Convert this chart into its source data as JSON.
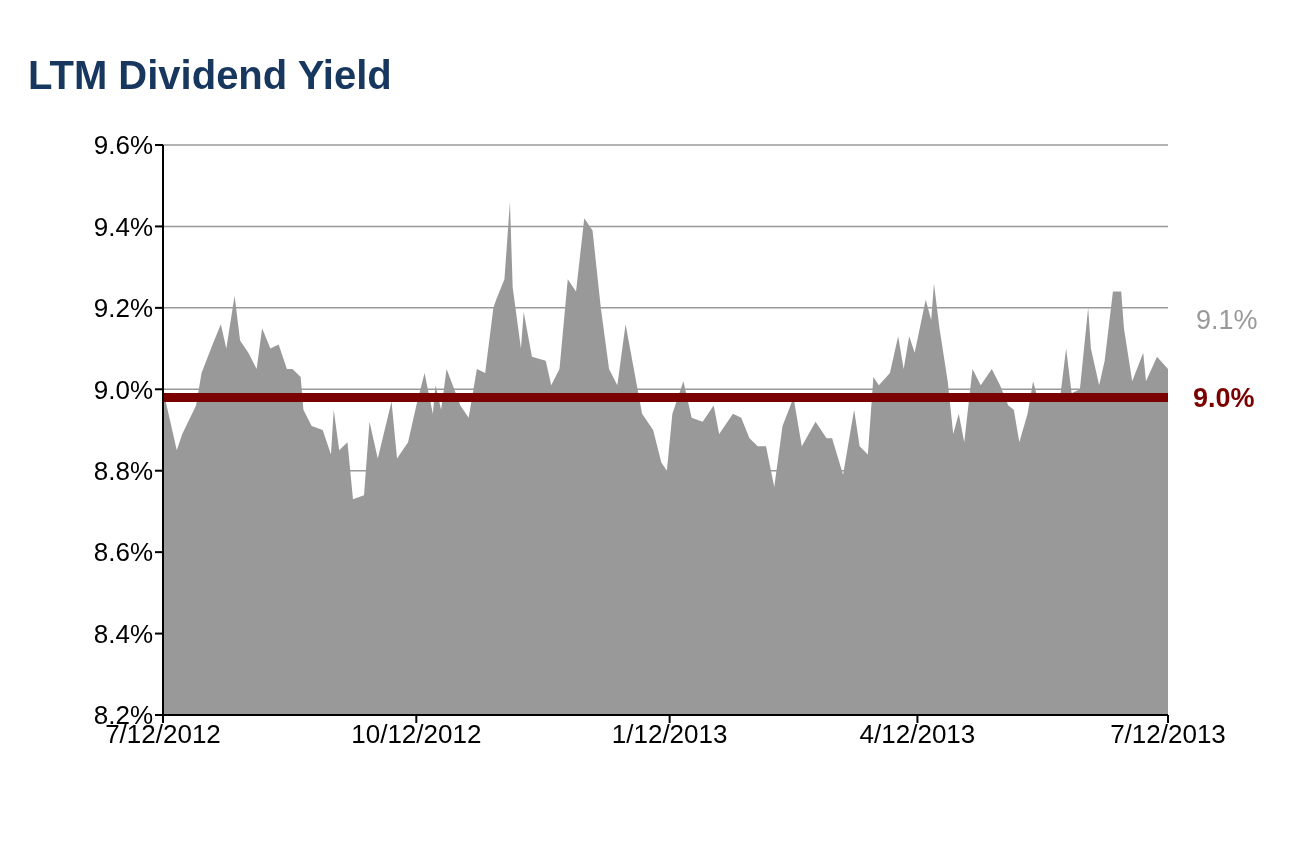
{
  "chart_data": {
    "type": "area",
    "title": "LTM Dividend Yield",
    "annotations": [
      "9.1%"
    ],
    "grid": "y",
    "xlim": [
      "2012-07-12",
      "2013-07-12"
    ],
    "xticks": [
      {
        "value": "2012-07-12",
        "label": "7/12/2012"
      },
      {
        "value": "2012-10-12",
        "label": "10/12/2012"
      },
      {
        "value": "2013-01-12",
        "label": "1/12/2013"
      },
      {
        "value": "2013-04-12",
        "label": "4/12/2013"
      },
      {
        "value": "2013-07-12",
        "label": "7/12/2013"
      }
    ],
    "ylim": [
      8.2,
      9.6
    ],
    "yticks": [
      {
        "value": 8.2,
        "label": "8.2%"
      },
      {
        "value": 8.4,
        "label": "8.4%"
      },
      {
        "value": 8.6,
        "label": "8.6%"
      },
      {
        "value": 8.8,
        "label": "8.8%"
      },
      {
        "value": 9.0,
        "label": "9.0%"
      },
      {
        "value": 9.2,
        "label": "9.2%"
      },
      {
        "value": 9.4,
        "label": "9.4%"
      },
      {
        "value": 9.6,
        "label": "9.6%"
      }
    ],
    "ref_lines": [
      {
        "axis": "y",
        "value": 8.98,
        "label": "9.0%",
        "color": "#7b0000"
      }
    ],
    "x": [
      "2012-07-12",
      "2012-07-13",
      "2012-07-17",
      "2012-07-19",
      "2012-07-24",
      "2012-07-26",
      "2012-07-30",
      "2012-08-02",
      "2012-08-04",
      "2012-08-07",
      "2012-08-09",
      "2012-08-12",
      "2012-08-15",
      "2012-08-17",
      "2012-08-20",
      "2012-08-23",
      "2012-08-26",
      "2012-08-28",
      "2012-08-31",
      "2012-09-01",
      "2012-09-04",
      "2012-09-08",
      "2012-09-11",
      "2012-09-12",
      "2012-09-14",
      "2012-09-17",
      "2012-09-19",
      "2012-09-23",
      "2012-09-25",
      "2012-09-28",
      "2012-10-03",
      "2012-10-05",
      "2012-10-09",
      "2012-10-12",
      "2012-10-15",
      "2012-10-18",
      "2012-10-19",
      "2012-10-21",
      "2012-10-23",
      "2012-10-28",
      "2012-10-31",
      "2012-11-03",
      "2012-11-06",
      "2012-11-09",
      "2012-11-10",
      "2012-11-13",
      "2012-11-15",
      "2012-11-16",
      "2012-11-19",
      "2012-11-20",
      "2012-11-23",
      "2012-11-28",
      "2012-11-30",
      "2012-12-03",
      "2012-12-06",
      "2012-12-09",
      "2012-12-12",
      "2012-12-15",
      "2012-12-18",
      "2012-12-21",
      "2012-12-24",
      "2012-12-27",
      "2012-12-30",
      "2013-01-02",
      "2013-01-06",
      "2013-01-09",
      "2013-01-11",
      "2013-01-13",
      "2013-01-17",
      "2013-01-20",
      "2013-01-24",
      "2013-01-28",
      "2013-01-30",
      "2013-02-04",
      "2013-02-07",
      "2013-02-10",
      "2013-02-13",
      "2013-02-16",
      "2013-02-19",
      "2013-02-22",
      "2013-02-26",
      "2013-03-01",
      "2013-03-06",
      "2013-03-10",
      "2013-03-12",
      "2013-03-16",
      "2013-03-20",
      "2013-03-22",
      "2013-03-25",
      "2013-03-27",
      "2013-03-29",
      "2013-04-02",
      "2013-04-05",
      "2013-04-07",
      "2013-04-09",
      "2013-04-11",
      "2013-04-15",
      "2013-04-17",
      "2013-04-18",
      "2013-04-20",
      "2013-04-23",
      "2013-04-25",
      "2013-04-27",
      "2013-04-29",
      "2013-05-02",
      "2013-05-05",
      "2013-05-09",
      "2013-05-12",
      "2013-05-15",
      "2013-05-17",
      "2013-05-19",
      "2013-05-22",
      "2013-05-24",
      "2013-05-26",
      "2013-05-30",
      "2013-06-03",
      "2013-06-05",
      "2013-06-07",
      "2013-06-10",
      "2013-06-13",
      "2013-06-14",
      "2013-06-17",
      "2013-06-19",
      "2013-06-22",
      "2013-06-25",
      "2013-06-26",
      "2013-06-29",
      "2013-07-03",
      "2013-07-04",
      "2013-07-08",
      "2013-07-12"
    ],
    "series": [
      {
        "color": "#999999",
        "values": [
          8.98,
          8.97,
          8.85,
          8.89,
          8.96,
          9.04,
          9.11,
          9.16,
          9.1,
          9.23,
          9.12,
          9.09,
          9.05,
          9.15,
          9.1,
          9.11,
          9.05,
          9.05,
          9.03,
          8.95,
          8.91,
          8.9,
          8.84,
          8.95,
          8.85,
          8.87,
          8.73,
          8.74,
          8.92,
          8.83,
          8.97,
          8.83,
          8.87,
          8.96,
          9.04,
          8.94,
          9.01,
          8.95,
          9.05,
          8.96,
          8.93,
          9.05,
          9.04,
          9.2,
          9.22,
          9.27,
          9.46,
          9.25,
          9.1,
          9.19,
          9.08,
          9.07,
          9.01,
          9.05,
          9.27,
          9.24,
          9.42,
          9.39,
          9.2,
          9.05,
          9.01,
          9.16,
          9.05,
          8.94,
          8.9,
          8.82,
          8.8,
          8.94,
          9.02,
          8.93,
          8.92,
          8.96,
          8.89,
          8.94,
          8.93,
          8.88,
          8.86,
          8.86,
          8.76,
          8.91,
          8.98,
          8.86,
          8.92,
          8.88,
          8.88,
          8.79,
          8.95,
          8.86,
          8.84,
          9.03,
          9.01,
          9.04,
          9.13,
          9.05,
          9.13,
          9.09,
          9.22,
          9.17,
          9.26,
          9.15,
          9.02,
          8.89,
          8.94,
          8.87,
          9.05,
          9.01,
          9.05,
          9.01,
          8.96,
          8.95,
          8.87,
          8.94,
          9.02,
          8.97,
          8.97,
          8.99,
          9.1,
          8.99,
          9.0,
          9.2,
          9.1,
          9.01,
          9.07,
          9.24,
          9.24,
          9.15,
          9.02,
          9.09,
          9.02,
          9.08,
          9.05
        ]
      }
    ]
  }
}
